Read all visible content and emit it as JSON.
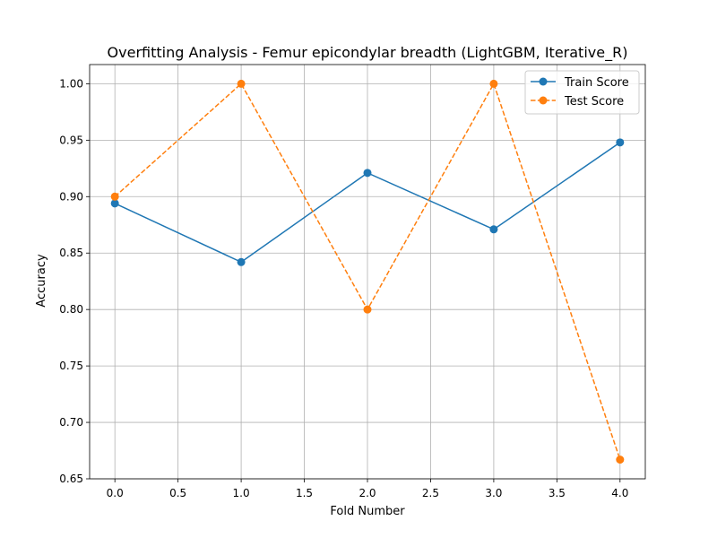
{
  "chart_data": {
    "type": "line",
    "title": "Overfitting Analysis - Femur epicondylar breadth (LightGBM, Iterative_R)",
    "xlabel": "Fold Number",
    "ylabel": "Accuracy",
    "xlim": [
      -0.2,
      4.2
    ],
    "ylim": [
      0.65,
      1.017
    ],
    "x": [
      0,
      1,
      2,
      3,
      4
    ],
    "xticks": [
      0.0,
      0.5,
      1.0,
      1.5,
      2.0,
      2.5,
      3.0,
      3.5,
      4.0
    ],
    "xtick_labels": [
      "0.0",
      "0.5",
      "1.0",
      "1.5",
      "2.0",
      "2.5",
      "3.0",
      "3.5",
      "4.0"
    ],
    "yticks": [
      0.65,
      0.7,
      0.75,
      0.8,
      0.85,
      0.9,
      0.95,
      1.0
    ],
    "ytick_labels": [
      "0.65",
      "0.70",
      "0.75",
      "0.80",
      "0.85",
      "0.90",
      "0.95",
      "1.00"
    ],
    "grid": true,
    "legend_position": "top-right",
    "series": [
      {
        "name": "Train Score",
        "values": [
          0.894,
          0.842,
          0.921,
          0.871,
          0.948
        ],
        "color": "#1f77b4",
        "line_style": "solid",
        "marker": "circle"
      },
      {
        "name": "Test Score",
        "values": [
          0.9,
          1.0,
          0.8,
          1.0,
          0.667
        ],
        "color": "#ff7f0e",
        "line_style": "dashed",
        "marker": "circle"
      }
    ]
  }
}
